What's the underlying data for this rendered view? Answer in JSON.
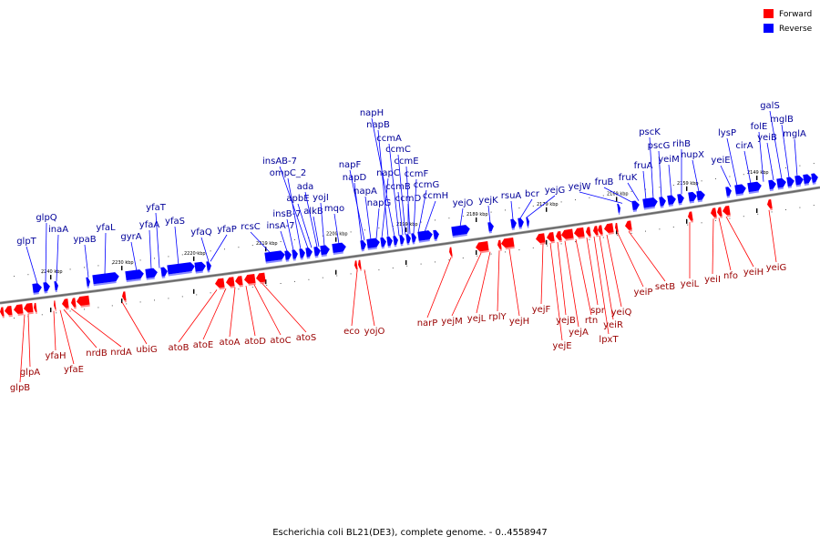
{
  "caption": "Escherichia coli BL21(DE3), complete genome. - 0..4558947",
  "legend": [
    {
      "label": "Forward",
      "color": "#ff0000"
    },
    {
      "label": "Reverse",
      "color": "#0000ff"
    }
  ],
  "colors": {
    "forward": "#ff0000",
    "reverse": "#0000ff",
    "forward_label": "#990000",
    "reverse_label": "#000099",
    "axis": "#777777"
  },
  "tick_labels": [
    "2240 kbp",
    "2230 kbp",
    "2220 kbp",
    "2210 kbp",
    "2200 kbp",
    "2190 kbp",
    "2180 kbp",
    "2170 kbp",
    "2160 kbp",
    "2150 kbp",
    "2140 kbp"
  ],
  "reverse_genes": [
    "glpT",
    "glpQ",
    "inaA",
    "ypaB",
    "yfaL",
    "gyrA",
    "yfaA",
    "yfaT",
    "yfaS",
    "yfaQ",
    "yfaP",
    "rcsC",
    "insA-7",
    "insB-7",
    "ompC_2",
    "insAB-7",
    "apbE",
    "ada",
    "alkB",
    "yojI",
    "mqo",
    "napD",
    "napF",
    "napA",
    "napG",
    "napC",
    "napB",
    "napH",
    "ccmA",
    "ccmB",
    "ccmC",
    "ccmD",
    "ccmE",
    "ccmF",
    "ccmG",
    "ccmH",
    "yejO",
    "yejK",
    "rsuA",
    "bcr",
    "yejG",
    "yejW",
    "fruB",
    "fruK",
    "fruA",
    "pscK",
    "pscG",
    "yeiM",
    "rihB",
    "nupX",
    "yeiE",
    "lysP",
    "cirA",
    "folE",
    "yeiB",
    "galS",
    "mglB",
    "mglA"
  ],
  "forward_genes": [
    "glpB",
    "glpA",
    "yfaH",
    "yfaE",
    "nrdB",
    "nrdA",
    "ubiG",
    "atoB",
    "atoE",
    "atoA",
    "atoD",
    "atoC",
    "atoS",
    "eco",
    "yojO",
    "narP",
    "yejM",
    "yejL",
    "rplY",
    "yejH",
    "yejF",
    "yejE",
    "yejB",
    "yejA",
    "rtn",
    "spr",
    "lpxT",
    "yeiR",
    "yeiQ",
    "yeiP",
    "setB",
    "yeiL",
    "yeiI",
    "nfo",
    "yeiH",
    "yeiG"
  ]
}
